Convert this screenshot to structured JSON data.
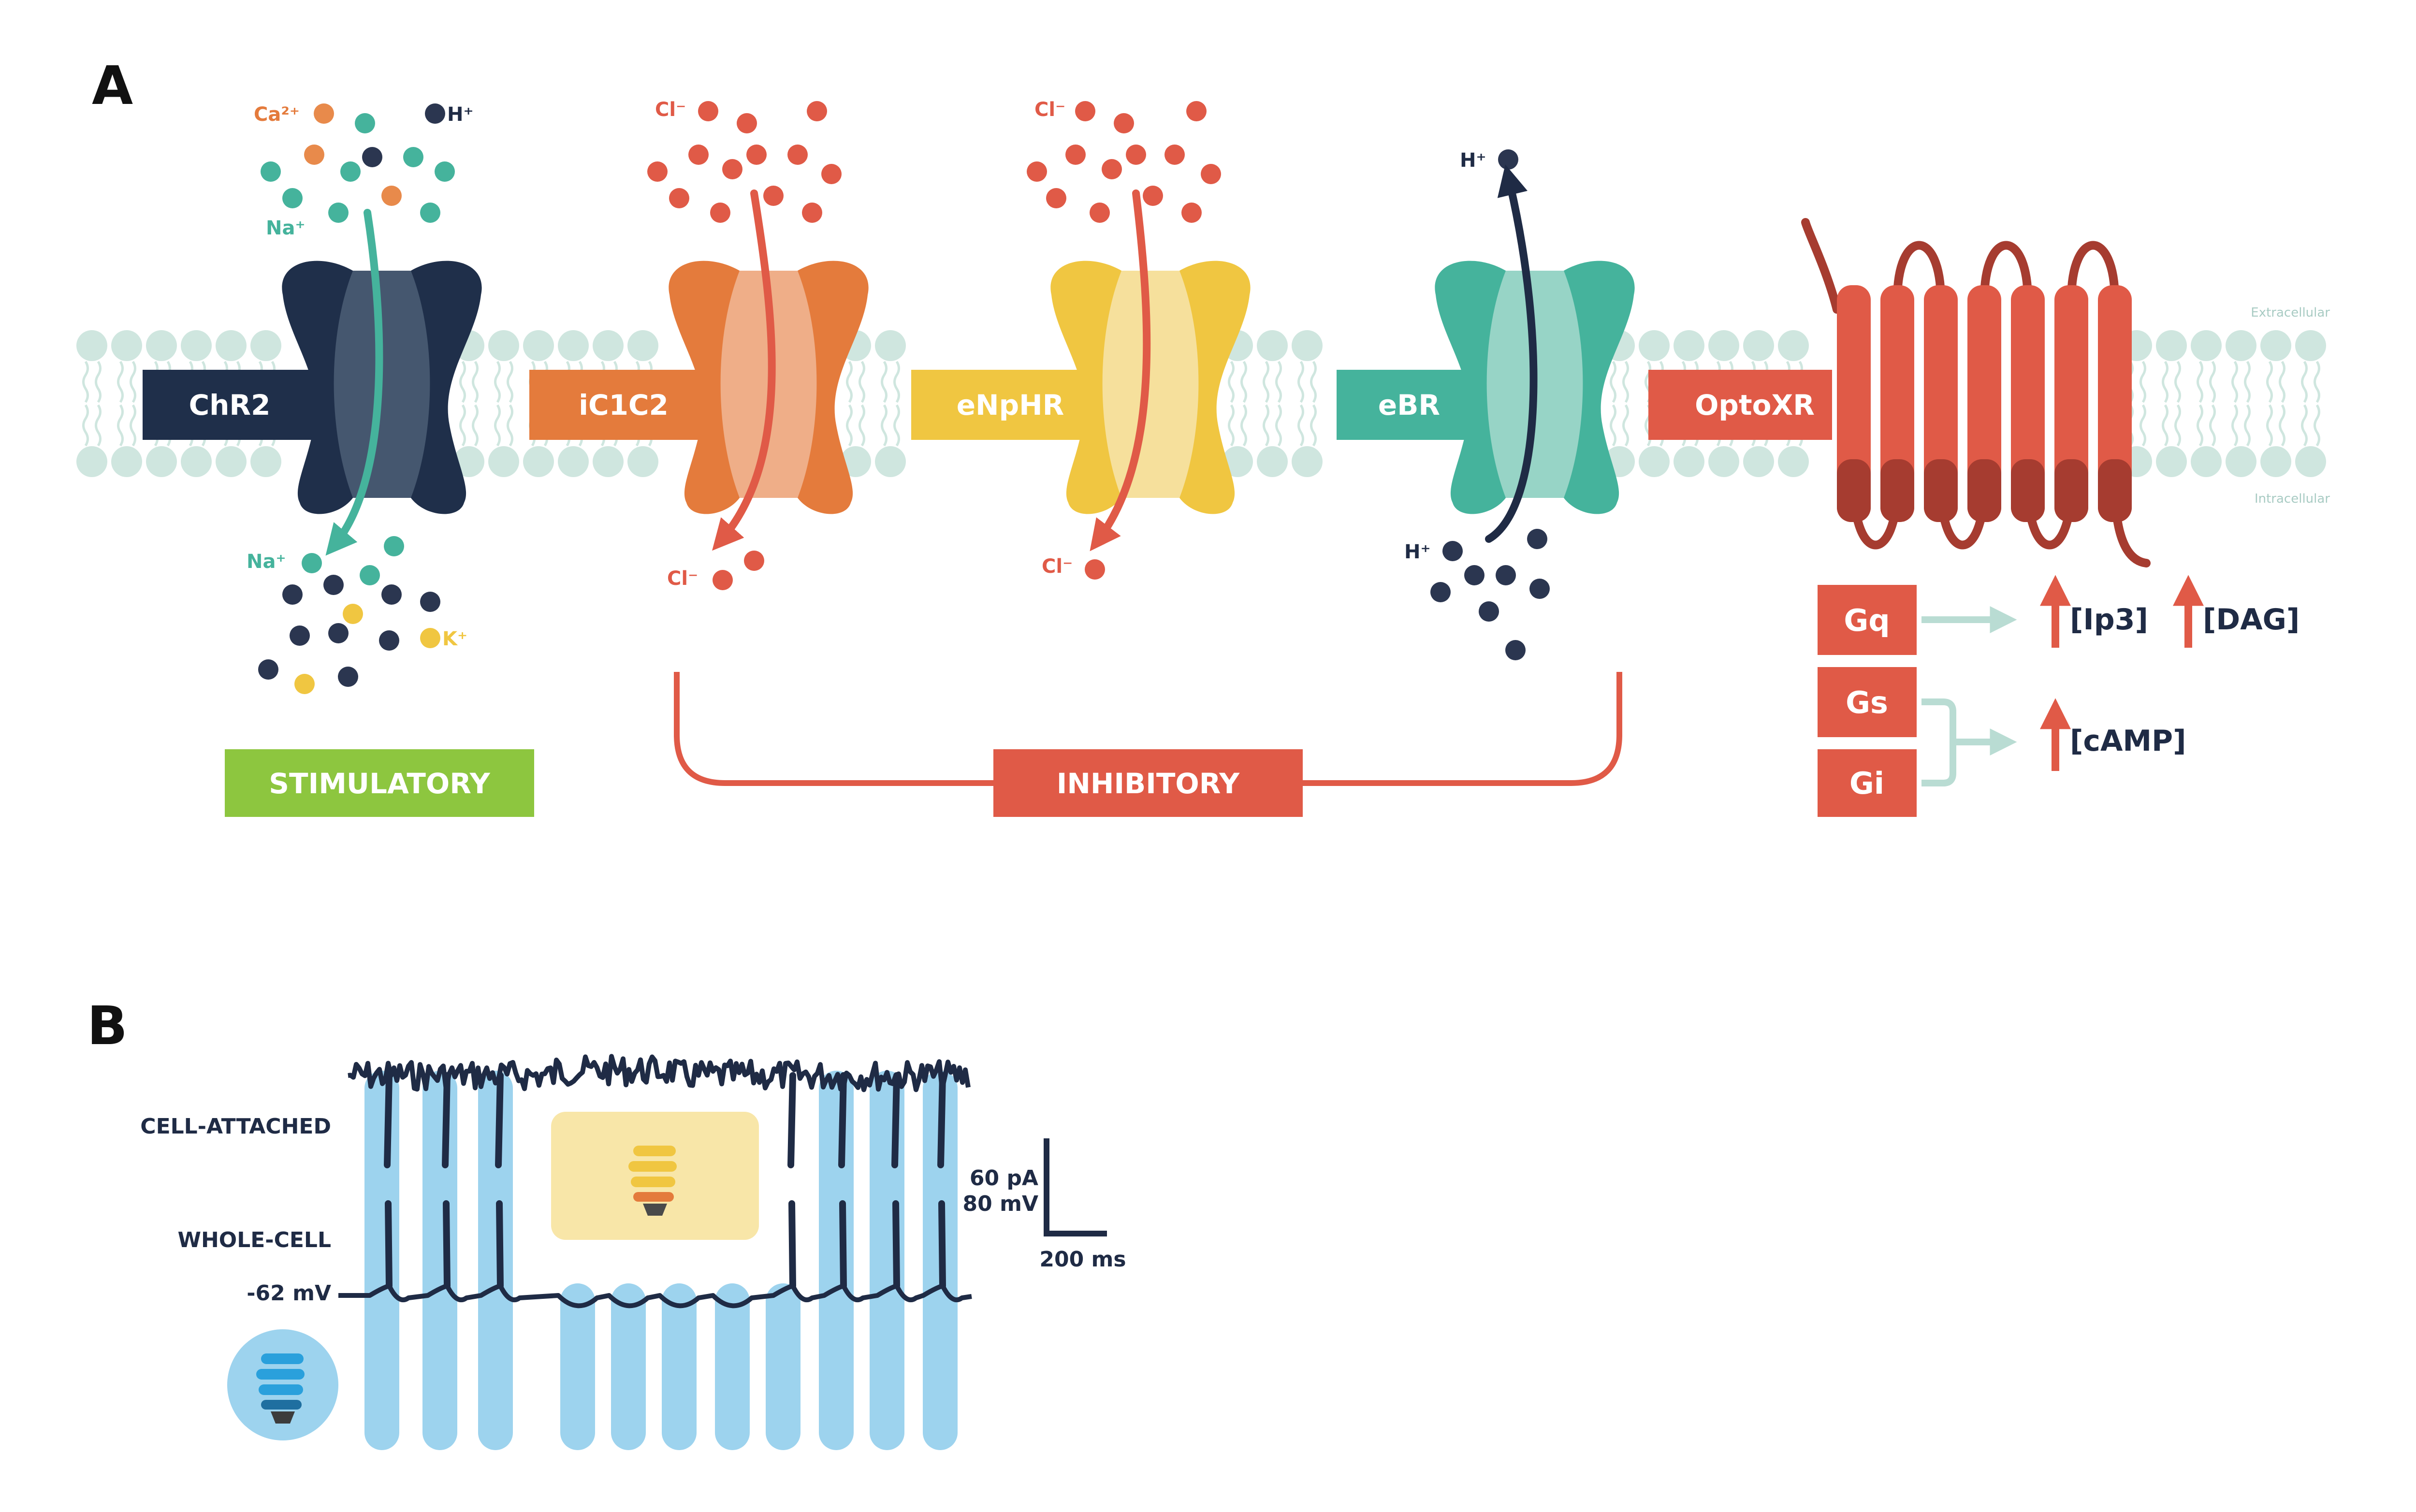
{
  "panels": {
    "a": "A",
    "b": "B"
  },
  "membrane": {
    "extracellular": "Extracellular",
    "intracellular": "Intracellular"
  },
  "channels": [
    {
      "name": "ChR2",
      "color": "#1f2f4a",
      "light": "#45576f"
    },
    {
      "name": "iC1C2",
      "color": "#e47b3c",
      "light": "#efae88"
    },
    {
      "name": "eNpHR",
      "color": "#f0c641",
      "light": "#f6e09c"
    },
    {
      "name": "eBR",
      "color": "#45b39c",
      "light": "#97d4c6"
    },
    {
      "name": "OptoXR",
      "color": "#e05a47",
      "dark": "#a63c30"
    }
  ],
  "ions": {
    "ca": "Ca²⁺",
    "h_top": "H⁺",
    "na_top": "Na⁺",
    "na_bottom": "Na⁺",
    "k": "K⁺",
    "cl_ic1c2_top": "Cl⁻",
    "cl_ic1c2_bottom": "Cl⁻",
    "cl_enphr_top": "Cl⁻",
    "cl_enphr_bottom": "Cl⁻",
    "h_ebr_top": "H⁺",
    "h_ebr_bottom": "H⁺"
  },
  "categories": {
    "stimulatory": "STIMULATORY",
    "inhibitory": "INHIBITORY"
  },
  "g_proteins": [
    "Gq",
    "Gs",
    "Gi"
  ],
  "messengers": [
    "[Ip3]",
    "[DAG]",
    "[cAMP]"
  ],
  "panel_b": {
    "cell_attached": "CELL-ATTACHED",
    "whole_cell": "WHOLE-CELL",
    "resting": "-62 mV",
    "scale_current": "60 pA",
    "scale_voltage": "80 mV",
    "scale_time": "200 ms"
  },
  "colors": {
    "stimulatory": "#8dc63f",
    "inhibitory": "#e05a47",
    "lipid": "#cfe6df",
    "trace": "#1f2b45",
    "blue_light": "#9dd3ee",
    "yellow_light": "#f8e6a8"
  }
}
